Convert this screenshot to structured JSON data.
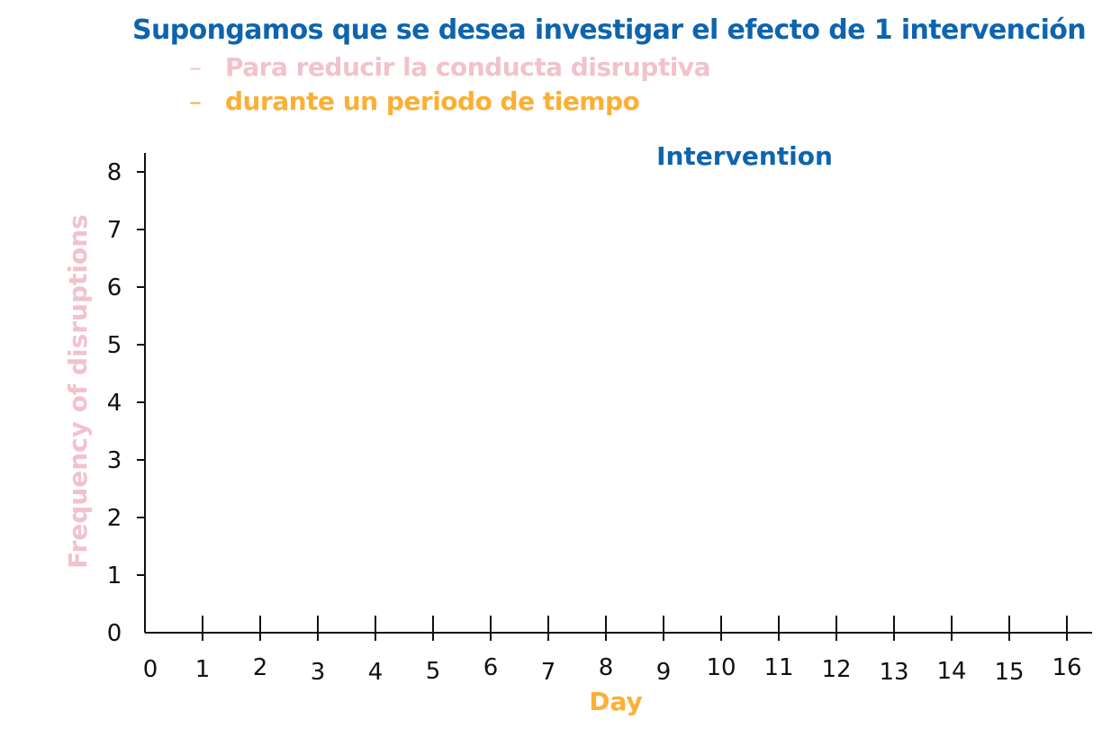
{
  "heading": {
    "title": "Supongamos que se desea investigar el efecto de 1 intervención",
    "bullets": [
      {
        "dash": "–",
        "text": "Para reducir la conducta disruptiva",
        "color": "#f2c2cc"
      },
      {
        "dash": "–",
        "text": "durante un periodo de tiempo",
        "color": "#fbb033"
      }
    ]
  },
  "chart_data": {
    "type": "line",
    "xlabel": "Day",
    "ylabel": "Frequency of disruptions",
    "phase_label": "Intervention",
    "x_ticks": [
      "0",
      "1",
      "2",
      "3",
      "4",
      "5",
      "6",
      "7",
      "8",
      "9",
      "10",
      "11",
      "12",
      "13",
      "14",
      "15",
      "16"
    ],
    "y_ticks": [
      "0",
      "1",
      "2",
      "3",
      "4",
      "5",
      "6",
      "7",
      "8"
    ],
    "xlim": [
      0,
      16
    ],
    "ylim": [
      0,
      8
    ],
    "series": [],
    "grid": false,
    "colors": {
      "axis": "#111111",
      "title": "#0e64ad",
      "ylabel": "#f2c2cc",
      "xlabel": "#fbb033"
    }
  }
}
